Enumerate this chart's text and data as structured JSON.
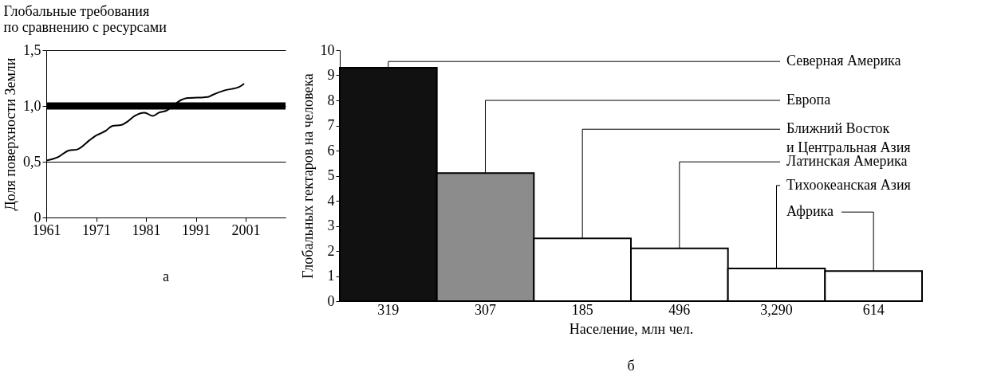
{
  "chart_data": [
    {
      "type": "line",
      "title": "Глобальные требования\nпо сравнению с ресурсами",
      "ylabel": "Доля поверхности Земли",
      "x": [
        1961,
        1963.3,
        1965.5,
        1967.2,
        1969.6,
        1970.8,
        1971.7,
        1973,
        1974.2,
        1976.1,
        1977.3,
        1978.7,
        1980.7,
        1982.4,
        1983.6,
        1985.2,
        1986.4,
        1987.9,
        1989.1,
        1993.4,
        1994.4,
        1996.8,
        1999.7,
        2000.7
      ],
      "series": [
        {
          "color": "#000000",
          "values": [
            0.51,
            0.54,
            0.6,
            0.61,
            0.69,
            0.73,
            0.75,
            0.78,
            0.82,
            0.83,
            0.86,
            0.91,
            0.94,
            0.91,
            0.94,
            0.96,
            1.0,
            1.05,
            1.07,
            1.08,
            1.1,
            1.14,
            1.17,
            1.2
          ]
        }
      ],
      "xlim": [
        1961,
        2009
      ],
      "xticks": [
        1961,
        1971,
        1981,
        1991,
        2001
      ],
      "ylim": [
        0,
        1.5
      ],
      "yticks": [
        0,
        {
          "value": 0.5,
          "label": "0,5"
        },
        {
          "value": 1,
          "label": "1,0"
        },
        {
          "value": 1.5,
          "label": "1,5"
        }
      ],
      "grid": "y",
      "line_style": "solid",
      "ref_lines": [
        {
          "axis": "y",
          "value": 1,
          "color": "#000000"
        }
      ],
      "annotations": [
        "а"
      ]
    },
    {
      "type": "bar",
      "ylabel": "Глобальных гектаров на человека",
      "xlabel": "Население, млн чел.",
      "values": [
        9.3,
        5.1,
        2.5,
        2.1,
        1.3,
        1.2
      ],
      "categories": [
        "319",
        "307",
        "185",
        "496",
        "3,290",
        "614"
      ],
      "colors": [
        "#111111",
        "#8c8c8c",
        "#ffffff",
        "#ffffff",
        "#ffffff",
        "#ffffff"
      ],
      "ylim": [
        0,
        10
      ],
      "yticks": [
        0,
        1,
        2,
        3,
        4,
        5,
        6,
        7,
        8,
        9,
        10
      ],
      "grid": false,
      "annotations": [
        {
          "text": "Северная Америка",
          "x": "319",
          "y": 9.3
        },
        {
          "text": "Европа",
          "x": "307",
          "y": 5.1
        },
        {
          "text": "Ближний Восток\nи Центральная Азия",
          "x": "185",
          "y": 2.5
        },
        {
          "text": "Латинская Америка",
          "x": "496",
          "y": 2.1
        },
        {
          "text": "Тихоокеанская Азия",
          "x": "3,290",
          "y": 1.3
        },
        {
          "text": "Африка",
          "x": "614",
          "y": 1.2
        },
        "б"
      ]
    }
  ]
}
